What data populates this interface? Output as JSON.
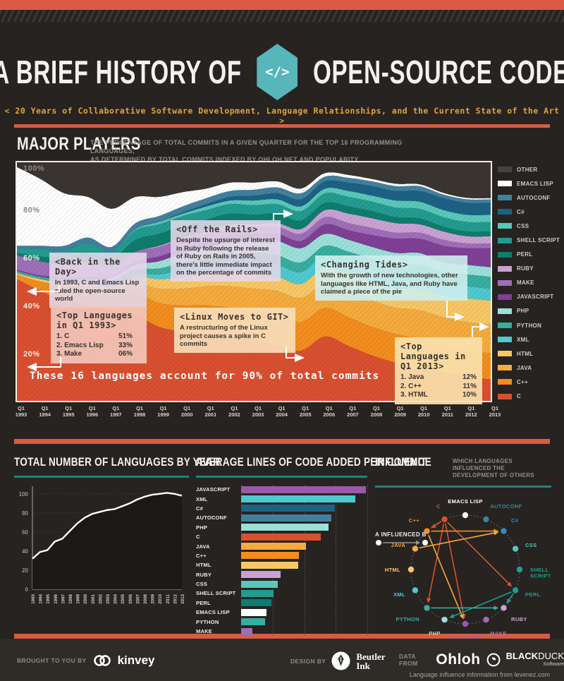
{
  "header": {
    "title_left": "A BRIEF HISTORY OF",
    "title_right": "OPEN-SOURCE CODE",
    "badge": "</>",
    "subtitle": "< 20 Years of Collaborative Software Development, Language Relationships, and the Current State of the Art >"
  },
  "major_players": {
    "title": "MAJOR PLAYERS",
    "desc_line1": "THE PERCENTAGE OF TOTAL COMMITS IN A GIVEN QUARTER FOR THE TOP 16 PROGRAMMING LANGUAGES,",
    "desc_line2": "AS DETERMINED BY TOTAL COMMITS INDEXED BY OHLOH.NET AND POPULARITY",
    "footnote": "These 16 languages account for 90% of total commits",
    "x_tick_prefix": "Q1",
    "annotations": {
      "back": {
        "title": "<Back in the Day>",
        "body": "In 1993, C and Emacs Lisp ruled the open-source world"
      },
      "q1993": {
        "title": "<Top Languages in Q1 1993>",
        "items": [
          {
            "name": "1. C",
            "pct": "51%"
          },
          {
            "name": "2. Emacs Lisp",
            "pct": "33%"
          },
          {
            "name": "3. Make",
            "pct": "06%"
          }
        ]
      },
      "rails": {
        "title": "<Off the Rails>",
        "body": "Despite the upsurge of interest in Ruby following the release of Ruby on Rails in 2005, there's little immediate impact on the percentage of commits"
      },
      "tides": {
        "title": "<Changing Tides>",
        "body": "With the growth of new technologies, other languages like HTML, Java, and Ruby have claimed a piece of the pie"
      },
      "linux": {
        "title": "<Linux Moves to GIT>",
        "body": "A restructuring of the Linux project causes a spike in C commits"
      },
      "q2013": {
        "title": "<Top Languages in Q1 2013>",
        "items": [
          {
            "name": "1. Java",
            "pct": "12%"
          },
          {
            "name": "2. C++",
            "pct": "11%"
          },
          {
            "name": "3. HTML",
            "pct": "10%"
          }
        ]
      }
    }
  },
  "bottom": {
    "languages_by_year_title": "TOTAL NUMBER OF LANGUAGES BY YEAR",
    "loc_per_commit_title": "AVERAGE LINES OF CODE ADDED PER COMMIT",
    "influence_title": "INFLUENCE",
    "influence_sub1": "WHICH LANGUAGES INFLUENCED THE",
    "influence_sub2": "DEVELOPMENT OF OTHERS",
    "influence_legend": "A INFLUENCED B"
  },
  "footer": {
    "brought": "BROUGHT TO YOU BY",
    "kinvey": "kinvey",
    "design": "DESIGN BY",
    "beutler_line1": "Beutler",
    "beutler_line2": "Ink",
    "data_from": "DATA FROM",
    "ohloh": "Ohloh",
    "blackduck_bold": "BLACK",
    "blackduck_thin": "DUCK",
    "blackduck_sub": "Software",
    "note": "Language influence information from levenez.com"
  },
  "colors": {
    "accent_orange": "#d95b43",
    "accent_teal": "#1f837c",
    "badge_teal": "#57b6ba",
    "subtitle_orange": "#e5a23c",
    "background": "#272320"
  },
  "chart_data": [
    {
      "type": "area",
      "title": "MAJOR PLAYERS",
      "stacked": true,
      "ylabel": "% of total commits",
      "yticks": [
        "100%",
        "80%",
        "60%",
        "40%",
        "20%"
      ],
      "x": [
        1993,
        1994,
        1995,
        1996,
        1997,
        1998,
        1999,
        2000,
        2001,
        2002,
        2003,
        2004,
        2005,
        2006,
        2007,
        2008,
        2009,
        2010,
        2011,
        2012,
        2013
      ],
      "series": [
        {
          "name": "C",
          "color": "#d95030",
          "values": [
            51,
            46,
            42,
            40,
            38,
            36,
            31,
            29,
            28,
            27,
            26,
            23,
            21,
            27,
            23,
            19,
            16,
            14,
            12,
            10,
            9
          ]
        },
        {
          "name": "C++",
          "color": "#f28d1e",
          "values": [
            2,
            4,
            6,
            7,
            6,
            9,
            10,
            11,
            12,
            12,
            12,
            13,
            12,
            12,
            12,
            12,
            12,
            12,
            11,
            11,
            11
          ]
        },
        {
          "name": "JAVA",
          "color": "#f5ab3d",
          "values": [
            0,
            0,
            0.5,
            1,
            2,
            4,
            6,
            7,
            8,
            9,
            9,
            10,
            10,
            10,
            11,
            11,
            11,
            12,
            12,
            12,
            12
          ]
        },
        {
          "name": "HTML",
          "color": "#f7c766",
          "values": [
            0.5,
            1,
            1,
            1.5,
            2,
            3,
            4,
            5,
            5,
            6,
            6,
            6,
            6,
            7,
            7,
            8,
            8,
            9,
            9,
            10,
            10
          ]
        },
        {
          "name": "XML",
          "color": "#4ec9cf",
          "values": [
            0,
            0,
            0,
            0,
            0.5,
            1,
            2,
            3,
            4,
            4,
            5,
            5,
            5,
            5,
            5,
            5,
            5,
            5,
            5,
            5,
            5
          ]
        },
        {
          "name": "PYTHON",
          "color": "#38ada1",
          "values": [
            1,
            1,
            1.5,
            1.5,
            2,
            2,
            2.5,
            3,
            3,
            3.5,
            4,
            4,
            4,
            4,
            4.5,
            4.5,
            5,
            5,
            5,
            5,
            5
          ]
        },
        {
          "name": "PHP",
          "color": "#9be0d8",
          "values": [
            0,
            0,
            0,
            0,
            1,
            2,
            3,
            4,
            4,
            5,
            5,
            6,
            6,
            5,
            5,
            5,
            5,
            5,
            4,
            4,
            4
          ]
        },
        {
          "name": "JAVASCRIPT",
          "color": "#7f4096",
          "values": [
            0.5,
            0.5,
            1,
            1,
            1,
            1.5,
            2,
            2,
            2.5,
            3,
            3,
            3,
            3,
            4,
            4,
            5,
            6,
            6,
            7,
            7,
            8
          ]
        },
        {
          "name": "MAKE",
          "color": "#9f6eb8",
          "values": [
            6,
            6,
            5,
            6,
            4,
            4,
            4,
            4,
            3.5,
            3.5,
            3,
            3,
            3,
            3,
            3,
            3,
            2.5,
            2.5,
            2.5,
            2,
            2
          ]
        },
        {
          "name": "RUBY",
          "color": "#c9a2d3",
          "values": [
            0,
            0,
            0,
            0,
            0,
            0,
            0.5,
            0.5,
            1,
            1,
            1,
            1.5,
            2,
            3,
            4,
            4,
            4,
            3.5,
            3.5,
            3,
            3
          ]
        },
        {
          "name": "PERL",
          "color": "#0e7d6e",
          "values": [
            1,
            2,
            3,
            4,
            3,
            5,
            5,
            5,
            5,
            4.5,
            4,
            4,
            3.5,
            3,
            3,
            3,
            2.5,
            2.5,
            2,
            2,
            2
          ]
        },
        {
          "name": "SHELL SCRIPT",
          "color": "#239b90",
          "values": [
            2,
            3,
            3,
            4,
            3,
            4,
            4,
            4,
            4,
            4,
            4,
            4,
            4,
            4,
            4,
            4,
            4,
            4,
            4,
            4,
            4
          ]
        },
        {
          "name": "CSS",
          "color": "#59c7ba",
          "values": [
            0,
            0,
            0,
            0,
            0,
            0.5,
            1,
            1,
            1.5,
            1.5,
            2,
            2,
            2,
            2,
            2.5,
            2.5,
            3,
            3,
            3,
            3,
            3
          ]
        },
        {
          "name": "C#",
          "color": "#1d6285",
          "values": [
            0,
            0,
            0,
            0,
            0,
            0,
            0,
            0.5,
            1,
            1.5,
            2,
            2.5,
            3,
            3,
            3.5,
            4,
            4,
            4.5,
            5,
            5,
            5
          ]
        },
        {
          "name": "AUTOCONF",
          "color": "#41809e",
          "values": [
            1,
            1.5,
            2,
            2.5,
            2,
            2.5,
            2.5,
            2.5,
            2.5,
            2.5,
            2.5,
            2.5,
            2.5,
            2,
            2,
            2,
            2,
            2,
            1.5,
            1.5,
            1.5
          ]
        },
        {
          "name": "EMACS LISP",
          "color": "#ffffff",
          "values": [
            33,
            28,
            22,
            17,
            16,
            11,
            8,
            6,
            4,
            3.5,
            3,
            2.5,
            2,
            1.5,
            1.2,
            1,
            1,
            0.8,
            0.7,
            0.6,
            0.5
          ]
        },
        {
          "name": "OTHER",
          "color": "#3a3531",
          "values": [
            2,
            7,
            13,
            14.5,
            19.5,
            14.5,
            14.5,
            12.5,
            11,
            8.5,
            8.5,
            8,
            11,
            4.5,
            5.3,
            7,
            9,
            9.2,
            12.8,
            14.9,
            15
          ]
        }
      ]
    },
    {
      "type": "line",
      "title": "TOTAL NUMBER OF LANGUAGES BY YEAR",
      "x": [
        1993,
        1994,
        1995,
        1996,
        1997,
        1998,
        1999,
        2000,
        2001,
        2002,
        2003,
        2004,
        2005,
        2006,
        2007,
        2008,
        2009,
        2010,
        2011,
        2012,
        2013
      ],
      "values": [
        32,
        39,
        41,
        50,
        53,
        61,
        69,
        75,
        79,
        81,
        83,
        84,
        87,
        90,
        94,
        97,
        99,
        100,
        101,
        100,
        98
      ],
      "ylim": [
        0,
        100
      ],
      "yticks": [
        0,
        20,
        40,
        60,
        80,
        100
      ],
      "line_color": "#ffffff"
    },
    {
      "type": "bar",
      "title": "AVERAGE LINES OF CODE ADDED PER COMMIT",
      "categories": [
        "JAVASCRIPT",
        "XML",
        "C#",
        "AUTOCONF",
        "PHP",
        "C",
        "JAVA",
        "C++",
        "HTML",
        "RUBY",
        "CSS",
        "SHELL SCRIPT",
        "PERL",
        "EMACS LISP",
        "PYTHON",
        "MAKE"
      ],
      "values": [
        395,
        362,
        297,
        285,
        278,
        252,
        206,
        184,
        182,
        125,
        117,
        103,
        97,
        81,
        76,
        35
      ],
      "colors": [
        "#9b59a8",
        "#4ec9cf",
        "#1d6285",
        "#41809e",
        "#9be0d8",
        "#d95030",
        "#f5ab3d",
        "#f28d1e",
        "#f7c766",
        "#c9a2d3",
        "#59c7ba",
        "#239b90",
        "#0e7d6e",
        "#ffffff",
        "#38ada1",
        "#9f6eb8"
      ],
      "xlim": [
        0,
        400
      ],
      "xticks": [
        0,
        100,
        200,
        300,
        400
      ]
    },
    {
      "type": "network",
      "title": "INFLUENCE",
      "nodes": [
        {
          "name": "EMACS LISP",
          "color": "#ffffff"
        },
        {
          "name": "AUTOCONF",
          "color": "#41809e"
        },
        {
          "name": "C#",
          "color": "#2f8fc0"
        },
        {
          "name": "CSS",
          "color": "#59c7ba"
        },
        {
          "name": "SHELL SCRIPT",
          "color": "#1f9e90"
        },
        {
          "name": "PERL",
          "color": "#1b9e90"
        },
        {
          "name": "RUBY",
          "color": "#c9a2d3"
        },
        {
          "name": "MAKE",
          "color": "#9f6eb8"
        },
        {
          "name": "JAVASCRIPT",
          "color": "#9b59a8"
        },
        {
          "name": "PHP",
          "color": "#9be0d8"
        },
        {
          "name": "PYTHON",
          "color": "#38ada1"
        },
        {
          "name": "XML",
          "color": "#4ec9cf"
        },
        {
          "name": "HTML",
          "color": "#f7c766"
        },
        {
          "name": "JAVA",
          "color": "#f5ab3d"
        },
        {
          "name": "C++",
          "color": "#f28d1e"
        },
        {
          "name": "C",
          "color": "#d95030"
        }
      ],
      "edges": [
        {
          "from": "C",
          "to": "C++",
          "color": "#d95030"
        },
        {
          "from": "C",
          "to": "PERL",
          "color": "#d95030"
        },
        {
          "from": "C",
          "to": "PYTHON",
          "color": "#d95030"
        },
        {
          "from": "C",
          "to": "JAVASCRIPT",
          "color": "#d95030"
        },
        {
          "from": "C++",
          "to": "C#",
          "color": "#f28d1e"
        },
        {
          "from": "C++",
          "to": "JAVASCRIPT",
          "color": "#f5ab3d"
        },
        {
          "from": "JAVA",
          "to": "C#",
          "color": "#f5ab3d"
        },
        {
          "from": "PERL",
          "to": "PHP",
          "color": "#1b9e90"
        },
        {
          "from": "PERL",
          "to": "RUBY",
          "color": "#1b9e90"
        },
        {
          "from": "PYTHON",
          "to": "RUBY",
          "color": "#38ada1"
        }
      ]
    }
  ]
}
